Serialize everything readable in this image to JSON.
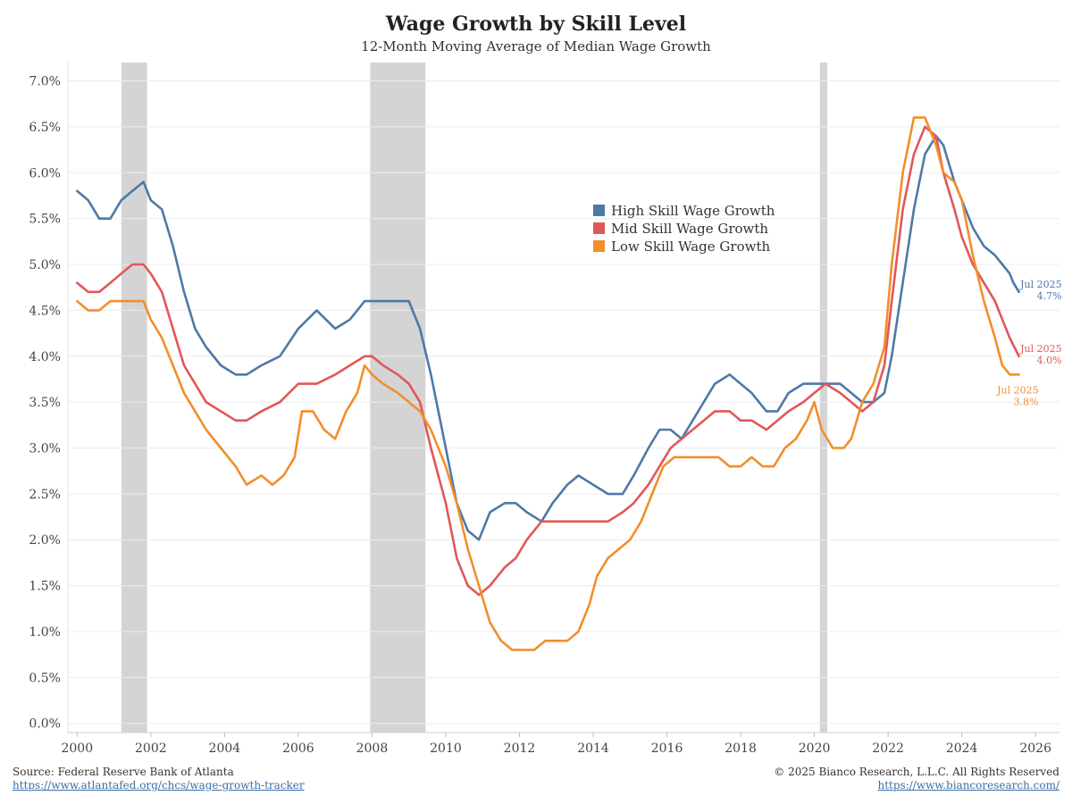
{
  "header": {
    "title": "Wage Growth by Skill Level",
    "subtitle": "12-Month Moving Average of Median Wage Growth"
  },
  "footer": {
    "source": "Source: Federal Reserve Bank of Atlanta",
    "source_url": "https://www.atlantafed.org/chcs/wage-growth-tracker",
    "copyright": "© 2025 Bianco Research, L.L.C. All Rights Reserved",
    "site_url": "https://www.biancoresearch.com/"
  },
  "colors": {
    "high": "#4e79a7",
    "mid": "#e15759",
    "low": "#f28e2b",
    "recession": "#d4d4d4",
    "grid": "#ececec"
  },
  "chart_data": {
    "type": "line",
    "xlim": [
      1999.75,
      2026.65
    ],
    "ylim": [
      -0.1,
      7.2
    ],
    "x_ticks": [
      2000,
      2002,
      2004,
      2006,
      2008,
      2010,
      2012,
      2014,
      2016,
      2018,
      2020,
      2022,
      2024,
      2026
    ],
    "x_tick_labels": [
      "2000",
      "2002",
      "2004",
      "2006",
      "2008",
      "2010",
      "2012",
      "2014",
      "2016",
      "2018",
      "2020",
      "2022",
      "2024",
      "2026"
    ],
    "y_ticks": [
      0,
      0.5,
      1.0,
      1.5,
      2.0,
      2.5,
      3.0,
      3.5,
      4.0,
      4.5,
      5.0,
      5.5,
      6.0,
      6.5,
      7.0
    ],
    "y_tick_labels": [
      "0.0%",
      "0.5%",
      "1.0%",
      "1.5%",
      "2.0%",
      "2.5%",
      "3.0%",
      "3.5%",
      "4.0%",
      "4.5%",
      "5.0%",
      "5.5%",
      "6.0%",
      "6.5%",
      "7.0%"
    ],
    "recessions": [
      [
        2001.2,
        2001.9
      ],
      [
        2007.95,
        2009.45
      ],
      [
        2020.15,
        2020.35
      ]
    ],
    "legend": {
      "position": "center-right",
      "entries": [
        "High Skill Wage Growth",
        "Mid Skill Wage Growth",
        "Low Skill Wage Growth"
      ]
    },
    "series": [
      {
        "name": "High Skill Wage Growth",
        "color": "#4e79a7",
        "end_label": "Jul 2025",
        "end_value_label": "4.7%",
        "points": [
          [
            2000.0,
            5.8
          ],
          [
            2000.3,
            5.7
          ],
          [
            2000.6,
            5.5
          ],
          [
            2000.9,
            5.5
          ],
          [
            2001.2,
            5.7
          ],
          [
            2001.5,
            5.8
          ],
          [
            2001.8,
            5.9
          ],
          [
            2002.0,
            5.7
          ],
          [
            2002.3,
            5.6
          ],
          [
            2002.6,
            5.2
          ],
          [
            2002.9,
            4.7
          ],
          [
            2003.2,
            4.3
          ],
          [
            2003.5,
            4.1
          ],
          [
            2003.9,
            3.9
          ],
          [
            2004.3,
            3.8
          ],
          [
            2004.6,
            3.8
          ],
          [
            2005.0,
            3.9
          ],
          [
            2005.5,
            4.0
          ],
          [
            2006.0,
            4.3
          ],
          [
            2006.5,
            4.5
          ],
          [
            2007.0,
            4.3
          ],
          [
            2007.4,
            4.4
          ],
          [
            2007.8,
            4.6
          ],
          [
            2008.0,
            4.6
          ],
          [
            2008.3,
            4.6
          ],
          [
            2008.7,
            4.6
          ],
          [
            2009.0,
            4.6
          ],
          [
            2009.3,
            4.3
          ],
          [
            2009.6,
            3.8
          ],
          [
            2010.0,
            3.0
          ],
          [
            2010.3,
            2.4
          ],
          [
            2010.6,
            2.1
          ],
          [
            2010.9,
            2.0
          ],
          [
            2011.2,
            2.3
          ],
          [
            2011.6,
            2.4
          ],
          [
            2011.9,
            2.4
          ],
          [
            2012.2,
            2.3
          ],
          [
            2012.6,
            2.2
          ],
          [
            2012.9,
            2.4
          ],
          [
            2013.3,
            2.6
          ],
          [
            2013.6,
            2.7
          ],
          [
            2014.0,
            2.6
          ],
          [
            2014.4,
            2.5
          ],
          [
            2014.8,
            2.5
          ],
          [
            2015.1,
            2.7
          ],
          [
            2015.5,
            3.0
          ],
          [
            2015.8,
            3.2
          ],
          [
            2016.1,
            3.2
          ],
          [
            2016.4,
            3.1
          ],
          [
            2016.7,
            3.3
          ],
          [
            2017.0,
            3.5
          ],
          [
            2017.3,
            3.7
          ],
          [
            2017.7,
            3.8
          ],
          [
            2018.0,
            3.7
          ],
          [
            2018.3,
            3.6
          ],
          [
            2018.7,
            3.4
          ],
          [
            2019.0,
            3.4
          ],
          [
            2019.3,
            3.6
          ],
          [
            2019.7,
            3.7
          ],
          [
            2020.0,
            3.7
          ],
          [
            2020.3,
            3.7
          ],
          [
            2020.7,
            3.7
          ],
          [
            2021.0,
            3.6
          ],
          [
            2021.3,
            3.5
          ],
          [
            2021.6,
            3.5
          ],
          [
            2021.9,
            3.6
          ],
          [
            2022.1,
            4.0
          ],
          [
            2022.4,
            4.8
          ],
          [
            2022.7,
            5.6
          ],
          [
            2023.0,
            6.2
          ],
          [
            2023.3,
            6.4
          ],
          [
            2023.5,
            6.3
          ],
          [
            2023.8,
            5.9
          ],
          [
            2024.0,
            5.7
          ],
          [
            2024.3,
            5.4
          ],
          [
            2024.6,
            5.2
          ],
          [
            2024.9,
            5.1
          ],
          [
            2025.1,
            5.0
          ],
          [
            2025.3,
            4.9
          ],
          [
            2025.4,
            4.8
          ],
          [
            2025.55,
            4.7
          ]
        ]
      },
      {
        "name": "Mid Skill Wage Growth",
        "color": "#e15759",
        "end_label": "Jul 2025",
        "end_value_label": "4.0%",
        "points": [
          [
            2000.0,
            4.8
          ],
          [
            2000.3,
            4.7
          ],
          [
            2000.6,
            4.7
          ],
          [
            2000.9,
            4.8
          ],
          [
            2001.2,
            4.9
          ],
          [
            2001.5,
            5.0
          ],
          [
            2001.8,
            5.0
          ],
          [
            2002.0,
            4.9
          ],
          [
            2002.3,
            4.7
          ],
          [
            2002.6,
            4.3
          ],
          [
            2002.9,
            3.9
          ],
          [
            2003.2,
            3.7
          ],
          [
            2003.5,
            3.5
          ],
          [
            2003.9,
            3.4
          ],
          [
            2004.3,
            3.3
          ],
          [
            2004.6,
            3.3
          ],
          [
            2005.0,
            3.4
          ],
          [
            2005.5,
            3.5
          ],
          [
            2006.0,
            3.7
          ],
          [
            2006.5,
            3.7
          ],
          [
            2007.0,
            3.8
          ],
          [
            2007.4,
            3.9
          ],
          [
            2007.8,
            4.0
          ],
          [
            2008.0,
            4.0
          ],
          [
            2008.3,
            3.9
          ],
          [
            2008.7,
            3.8
          ],
          [
            2009.0,
            3.7
          ],
          [
            2009.3,
            3.5
          ],
          [
            2009.6,
            3.0
          ],
          [
            2010.0,
            2.4
          ],
          [
            2010.3,
            1.8
          ],
          [
            2010.6,
            1.5
          ],
          [
            2010.9,
            1.4
          ],
          [
            2011.2,
            1.5
          ],
          [
            2011.6,
            1.7
          ],
          [
            2011.9,
            1.8
          ],
          [
            2012.2,
            2.0
          ],
          [
            2012.6,
            2.2
          ],
          [
            2012.9,
            2.2
          ],
          [
            2013.3,
            2.2
          ],
          [
            2013.6,
            2.2
          ],
          [
            2014.0,
            2.2
          ],
          [
            2014.4,
            2.2
          ],
          [
            2014.8,
            2.3
          ],
          [
            2015.1,
            2.4
          ],
          [
            2015.5,
            2.6
          ],
          [
            2015.8,
            2.8
          ],
          [
            2016.1,
            3.0
          ],
          [
            2016.4,
            3.1
          ],
          [
            2016.7,
            3.2
          ],
          [
            2017.0,
            3.3
          ],
          [
            2017.3,
            3.4
          ],
          [
            2017.7,
            3.4
          ],
          [
            2018.0,
            3.3
          ],
          [
            2018.3,
            3.3
          ],
          [
            2018.7,
            3.2
          ],
          [
            2019.0,
            3.3
          ],
          [
            2019.3,
            3.4
          ],
          [
            2019.7,
            3.5
          ],
          [
            2020.0,
            3.6
          ],
          [
            2020.3,
            3.7
          ],
          [
            2020.7,
            3.6
          ],
          [
            2021.0,
            3.5
          ],
          [
            2021.3,
            3.4
          ],
          [
            2021.6,
            3.5
          ],
          [
            2021.9,
            3.9
          ],
          [
            2022.1,
            4.6
          ],
          [
            2022.4,
            5.6
          ],
          [
            2022.7,
            6.2
          ],
          [
            2023.0,
            6.5
          ],
          [
            2023.3,
            6.4
          ],
          [
            2023.5,
            6.0
          ],
          [
            2023.8,
            5.6
          ],
          [
            2024.0,
            5.3
          ],
          [
            2024.3,
            5.0
          ],
          [
            2024.6,
            4.8
          ],
          [
            2024.9,
            4.6
          ],
          [
            2025.1,
            4.4
          ],
          [
            2025.3,
            4.2
          ],
          [
            2025.55,
            4.0
          ]
        ]
      },
      {
        "name": "Low Skill Wage Growth",
        "color": "#f28e2b",
        "end_label": "Jul 2025",
        "end_value_label": "3.8%",
        "points": [
          [
            2000.0,
            4.6
          ],
          [
            2000.3,
            4.5
          ],
          [
            2000.6,
            4.5
          ],
          [
            2000.9,
            4.6
          ],
          [
            2001.2,
            4.6
          ],
          [
            2001.5,
            4.6
          ],
          [
            2001.8,
            4.6
          ],
          [
            2002.0,
            4.4
          ],
          [
            2002.3,
            4.2
          ],
          [
            2002.6,
            3.9
          ],
          [
            2002.9,
            3.6
          ],
          [
            2003.2,
            3.4
          ],
          [
            2003.5,
            3.2
          ],
          [
            2003.9,
            3.0
          ],
          [
            2004.3,
            2.8
          ],
          [
            2004.6,
            2.6
          ],
          [
            2005.0,
            2.7
          ],
          [
            2005.3,
            2.6
          ],
          [
            2005.6,
            2.7
          ],
          [
            2005.9,
            2.9
          ],
          [
            2006.1,
            3.4
          ],
          [
            2006.4,
            3.4
          ],
          [
            2006.7,
            3.2
          ],
          [
            2007.0,
            3.1
          ],
          [
            2007.3,
            3.4
          ],
          [
            2007.6,
            3.6
          ],
          [
            2007.8,
            3.9
          ],
          [
            2008.0,
            3.8
          ],
          [
            2008.3,
            3.7
          ],
          [
            2008.7,
            3.6
          ],
          [
            2009.0,
            3.5
          ],
          [
            2009.3,
            3.4
          ],
          [
            2009.6,
            3.2
          ],
          [
            2010.0,
            2.8
          ],
          [
            2010.3,
            2.4
          ],
          [
            2010.6,
            1.9
          ],
          [
            2010.9,
            1.5
          ],
          [
            2011.2,
            1.1
          ],
          [
            2011.5,
            0.9
          ],
          [
            2011.8,
            0.8
          ],
          [
            2012.1,
            0.8
          ],
          [
            2012.4,
            0.8
          ],
          [
            2012.7,
            0.9
          ],
          [
            2013.0,
            0.9
          ],
          [
            2013.3,
            0.9
          ],
          [
            2013.6,
            1.0
          ],
          [
            2013.9,
            1.3
          ],
          [
            2014.1,
            1.6
          ],
          [
            2014.4,
            1.8
          ],
          [
            2014.7,
            1.9
          ],
          [
            2015.0,
            2.0
          ],
          [
            2015.3,
            2.2
          ],
          [
            2015.6,
            2.5
          ],
          [
            2015.9,
            2.8
          ],
          [
            2016.2,
            2.9
          ],
          [
            2016.5,
            2.9
          ],
          [
            2016.8,
            2.9
          ],
          [
            2017.1,
            2.9
          ],
          [
            2017.4,
            2.9
          ],
          [
            2017.7,
            2.8
          ],
          [
            2018.0,
            2.8
          ],
          [
            2018.3,
            2.9
          ],
          [
            2018.6,
            2.8
          ],
          [
            2018.9,
            2.8
          ],
          [
            2019.2,
            3.0
          ],
          [
            2019.5,
            3.1
          ],
          [
            2019.8,
            3.3
          ],
          [
            2020.0,
            3.5
          ],
          [
            2020.2,
            3.2
          ],
          [
            2020.5,
            3.0
          ],
          [
            2020.8,
            3.0
          ],
          [
            2021.0,
            3.1
          ],
          [
            2021.3,
            3.5
          ],
          [
            2021.6,
            3.7
          ],
          [
            2021.9,
            4.1
          ],
          [
            2022.1,
            5.0
          ],
          [
            2022.4,
            6.0
          ],
          [
            2022.7,
            6.6
          ],
          [
            2023.0,
            6.6
          ],
          [
            2023.3,
            6.3
          ],
          [
            2023.5,
            6.0
          ],
          [
            2023.8,
            5.9
          ],
          [
            2024.0,
            5.7
          ],
          [
            2024.3,
            5.1
          ],
          [
            2024.6,
            4.6
          ],
          [
            2024.9,
            4.2
          ],
          [
            2025.1,
            3.9
          ],
          [
            2025.3,
            3.8
          ],
          [
            2025.55,
            3.8
          ]
        ]
      }
    ]
  }
}
